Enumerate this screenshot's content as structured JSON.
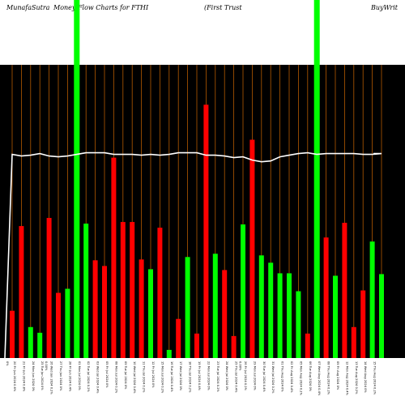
{
  "header": {
    "site": "MunafaSutra",
    "title_part1": "Money Flow  Charts for FTHI",
    "title_part2": "(First Trust",
    "title_part3": "BuyWrit"
  },
  "colors": {
    "background": "#000000",
    "page": "#ffffff",
    "up": "#00ff00",
    "down": "#ff0000",
    "grid": "#b35900",
    "line": "#ffffff"
  },
  "chart_data": {
    "type": "bar",
    "bar_values": [
      58,
      162,
      38,
      31,
      172,
      80,
      85,
      330,
      165,
      120,
      113,
      246,
      167,
      167,
      121,
      109,
      160,
      10,
      48,
      124,
      30,
      311,
      128,
      108,
      27,
      164,
      268,
      126,
      117,
      104,
      104,
      82,
      30,
      330,
      148,
      101,
      166,
      38,
      83,
      143,
      103
    ],
    "bar_colors": [
      "red",
      "red",
      "green",
      "green",
      "red",
      "red",
      "green",
      "green",
      "green",
      "red",
      "red",
      "red",
      "red",
      "red",
      "red",
      "green",
      "red",
      "green",
      "red",
      "green",
      "red",
      "red",
      "green",
      "red",
      "red",
      "green",
      "red",
      "green",
      "green",
      "green",
      "green",
      "green",
      "red",
      "green",
      "red",
      "green",
      "red",
      "red",
      "red",
      "green",
      "green"
    ],
    "full_height_bars": [
      7,
      33
    ],
    "line_values": [
      250,
      248,
      249,
      251,
      248,
      247,
      248,
      250,
      252,
      252,
      252,
      250,
      250,
      250,
      249,
      250,
      249,
      250,
      252,
      252,
      252,
      249,
      249,
      248,
      246,
      247,
      243,
      241,
      242,
      247,
      249,
      251,
      252,
      250,
      251,
      251,
      251,
      251,
      250,
      250,
      251
    ],
    "line_start": 0,
    "ylim": [
      0,
      360
    ],
    "x_tick_labels": [
      "0%",
      "20 Fri Jun 2024 0.6%",
      "21 Fri Jun 2024 0.8%",
      "24 Mon Jun 2024 0%",
      "25 Tue Jun 2024 0%",
      "26 Wed Jun 2024 0.2%",
      "27 Thu Jun 2024 0%",
      "28 Fri Jun 2024 0.4%",
      "01 Mon Jul 2024 0%",
      "02 Tue Jul 2024 0.2%",
      "03 Wed Jul 2024 0.4%",
      "05 Fri Jul 2024 0%",
      "08 Mon Jul 2024 0.2%",
      "09 Tue Jul 2024 0%",
      "10 Wed Jul 2024 0.4%",
      "11 Thu Jul 2024 0.2%",
      "12 Fri Jul 2024 0%",
      "15 Mon Jul 2024 0.2%",
      "16 Tue Jul 2024 0.4%",
      "17 Wed Jul 2024 0%",
      "18 Thu Jul 2024 0.2%",
      "19 Fri Jul 2024 0.4%",
      "22 Mon Jul 2024 0%",
      "23 Tue Jul 2024 0.2%",
      "24 Wed Jul 2024 0%",
      "25 Thu Jul 2024 0.4%",
      "26 Fri Jul 2024 0.2%",
      "29 Mon Jul 2024 0%",
      "30 Tue Jul 2024 0.4%",
      "31 Wed Jul 2024 0.2%",
      "01 Thu Aug 2024 0%",
      "02 Fri Aug 2024 0.4%",
      "05 Mon Aug 2024 0.2%",
      "06 Tue Aug 2024 0%",
      "07 Wed Aug 2024 0.4%",
      "08 Thu Aug 2024 0.2%",
      "09 Fri Aug 2024 0%",
      "12 Mon Aug 2024 0.4%",
      "13 Tue Aug 2024 0.2%",
      "14 Wed Aug 2024 0%",
      "15 Thu Aug 2024 0.2%"
    ],
    "extra_labels": [
      {
        "after_index": 3,
        "text": "0.00%"
      },
      {
        "after_index": 24,
        "text": "0.00%"
      }
    ]
  }
}
